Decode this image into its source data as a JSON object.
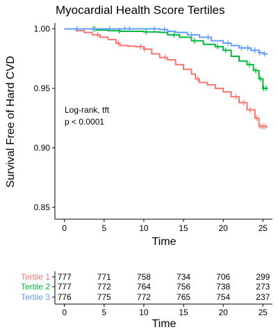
{
  "chart_data": {
    "type": "line",
    "title": "Myocardial Health Score Tertiles",
    "xlabel": "Time",
    "ylabel": "Survival Free of Hard CVD",
    "xlim": [
      -1.2,
      26.2
    ],
    "ylim": [
      0.84,
      1.005
    ],
    "x_ticks": [
      0,
      5,
      10,
      15,
      20,
      25
    ],
    "y_ticks": [
      0.85,
      0.9,
      0.95,
      1.0
    ],
    "x_tick_labels": [
      "0",
      "5",
      "10",
      "15",
      "20",
      "25"
    ],
    "y_tick_labels": [
      "0.85",
      "0.90",
      "0.95",
      "1.00"
    ],
    "annotation": [
      "Log-rank, tft",
      "p < 0.0001"
    ],
    "series": [
      {
        "name": "Tertile 1",
        "color": "#F8766D",
        "steps": [
          [
            0,
            1.0
          ],
          [
            1.5,
            0.9985
          ],
          [
            2.5,
            0.997
          ],
          [
            3.5,
            0.995
          ],
          [
            4.5,
            0.993
          ],
          [
            5.5,
            0.991
          ],
          [
            6.5,
            0.988
          ],
          [
            7.0,
            0.986
          ],
          [
            8.0,
            0.9855
          ],
          [
            9.0,
            0.985
          ],
          [
            10.0,
            0.983
          ],
          [
            11.0,
            0.979
          ],
          [
            12.0,
            0.976
          ],
          [
            13.0,
            0.974
          ],
          [
            14.0,
            0.97
          ],
          [
            15.0,
            0.966
          ],
          [
            16.0,
            0.962
          ],
          [
            16.5,
            0.958
          ],
          [
            17.0,
            0.955
          ],
          [
            18.0,
            0.953
          ],
          [
            19.0,
            0.95
          ],
          [
            20.0,
            0.947
          ],
          [
            21.0,
            0.943
          ],
          [
            22.0,
            0.938
          ],
          [
            23.0,
            0.932
          ],
          [
            24.0,
            0.925
          ],
          [
            24.5,
            0.918
          ],
          [
            25.5,
            0.917
          ]
        ],
        "censors": [
          4.2,
          6.8,
          9.6,
          10.1,
          12.7,
          16.8,
          21.6,
          22.6,
          23.4,
          24.2,
          24.7,
          25.0,
          25.3
        ]
      },
      {
        "name": "Tertile 2",
        "color": "#00BA38",
        "steps": [
          [
            0,
            1.0
          ],
          [
            4.0,
            0.999
          ],
          [
            5.5,
            0.9985
          ],
          [
            7.0,
            0.998
          ],
          [
            10.0,
            0.9975
          ],
          [
            12.0,
            0.997
          ],
          [
            13.0,
            0.995
          ],
          [
            14.5,
            0.993
          ],
          [
            16.0,
            0.99
          ],
          [
            17.5,
            0.987
          ],
          [
            19.0,
            0.985
          ],
          [
            20.0,
            0.982
          ],
          [
            21.0,
            0.977
          ],
          [
            22.0,
            0.973
          ],
          [
            23.0,
            0.97
          ],
          [
            23.8,
            0.965
          ],
          [
            24.5,
            0.958
          ],
          [
            25.0,
            0.95
          ],
          [
            25.6,
            0.95
          ]
        ],
        "censors": [
          3.8,
          6.9,
          10.3,
          13.8,
          16.4,
          19.3,
          20.3,
          23.3,
          24.1,
          24.7,
          25.1,
          25.4
        ]
      },
      {
        "name": "Tertile 3",
        "color": "#619CFF",
        "steps": [
          [
            0,
            1.0
          ],
          [
            12.0,
            0.9995
          ],
          [
            13.0,
            0.998
          ],
          [
            14.0,
            0.997
          ],
          [
            15.5,
            0.995
          ],
          [
            17.0,
            0.993
          ],
          [
            18.5,
            0.99
          ],
          [
            20.0,
            0.988
          ],
          [
            21.0,
            0.986
          ],
          [
            22.0,
            0.984
          ],
          [
            23.5,
            0.982
          ],
          [
            24.5,
            0.98
          ],
          [
            25.0,
            0.979
          ],
          [
            25.6,
            0.979
          ]
        ],
        "censors": [
          1.6,
          3.6,
          5.7,
          7.6,
          8.2,
          11.3,
          12.6,
          16.0,
          18.1,
          20.6,
          22.3,
          23.1,
          24.0,
          24.6,
          25.2
        ]
      }
    ],
    "risk_table": {
      "xlabel": "Time",
      "x_ticks": [
        0,
        5,
        10,
        15,
        20,
        25
      ],
      "x_tick_labels": [
        "0",
        "5",
        "10",
        "15",
        "20",
        "25"
      ],
      "rows": [
        {
          "label": "Tertile 1",
          "color": "#F8766D",
          "values": [
            "777",
            "771",
            "758",
            "734",
            "706",
            "299"
          ]
        },
        {
          "label": "Tertile 2",
          "color": "#00BA38",
          "values": [
            "777",
            "772",
            "764",
            "756",
            "738",
            "273"
          ]
        },
        {
          "label": "Tertile 3",
          "color": "#619CFF",
          "values": [
            "776",
            "775",
            "772",
            "765",
            "754",
            "237"
          ]
        }
      ]
    }
  }
}
